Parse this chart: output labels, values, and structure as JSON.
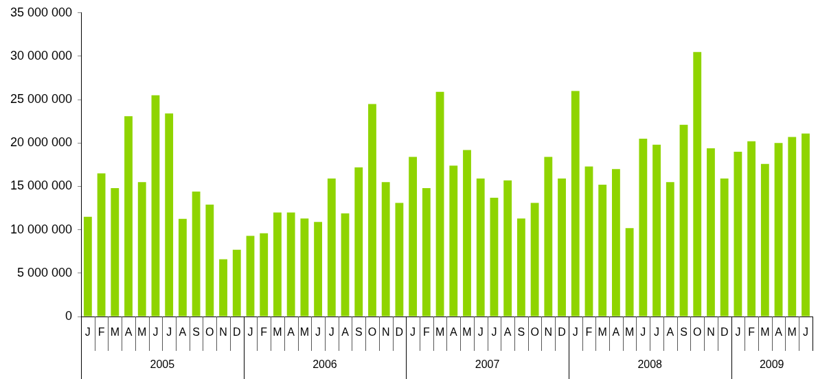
{
  "chart_data": {
    "type": "bar",
    "categories": [
      "J",
      "F",
      "M",
      "A",
      "M",
      "J",
      "J",
      "A",
      "S",
      "O",
      "N",
      "D",
      "J",
      "F",
      "M",
      "A",
      "M",
      "J",
      "J",
      "A",
      "S",
      "O",
      "N",
      "D",
      "J",
      "F",
      "M",
      "A",
      "M",
      "J",
      "J",
      "A",
      "S",
      "O",
      "N",
      "D",
      "J",
      "F",
      "M",
      "A",
      "M",
      "J",
      "J",
      "A",
      "S",
      "O",
      "N",
      "D",
      "J",
      "F",
      "M",
      "A",
      "M",
      "J"
    ],
    "values": [
      11500000,
      16500000,
      14800000,
      23100000,
      15500000,
      25500000,
      23400000,
      11250000,
      14400000,
      12900000,
      6600000,
      7700000,
      9300000,
      9600000,
      12000000,
      12000000,
      11300000,
      10900000,
      15900000,
      11900000,
      17200000,
      24500000,
      15500000,
      13100000,
      18400000,
      14800000,
      25900000,
      17400000,
      19200000,
      15900000,
      13700000,
      15700000,
      11300000,
      13100000,
      18400000,
      15900000,
      26000000,
      17300000,
      15200000,
      17000000,
      10200000,
      20500000,
      19800000,
      15500000,
      22100000,
      30500000,
      19400000,
      15900000,
      19000000,
      20200000,
      17600000,
      20000000,
      20700000,
      21100000
    ],
    "color": "#8fd400",
    "ylim": [
      0,
      35000000
    ],
    "yticks": [
      {
        "value": 0,
        "label": "0"
      },
      {
        "value": 5000000,
        "label": "5 000 000"
      },
      {
        "value": 10000000,
        "label": "10 000 000"
      },
      {
        "value": 15000000,
        "label": "15 000 000"
      },
      {
        "value": 20000000,
        "label": "20 000 000"
      },
      {
        "value": 25000000,
        "label": "25 000 000"
      },
      {
        "value": 30000000,
        "label": "30 000 000"
      },
      {
        "value": 35000000,
        "label": "35 000 000"
      }
    ],
    "annotations": [
      "2005",
      "2006",
      "2007",
      "2008",
      "2009"
    ],
    "grid": false,
    "legend": false
  }
}
